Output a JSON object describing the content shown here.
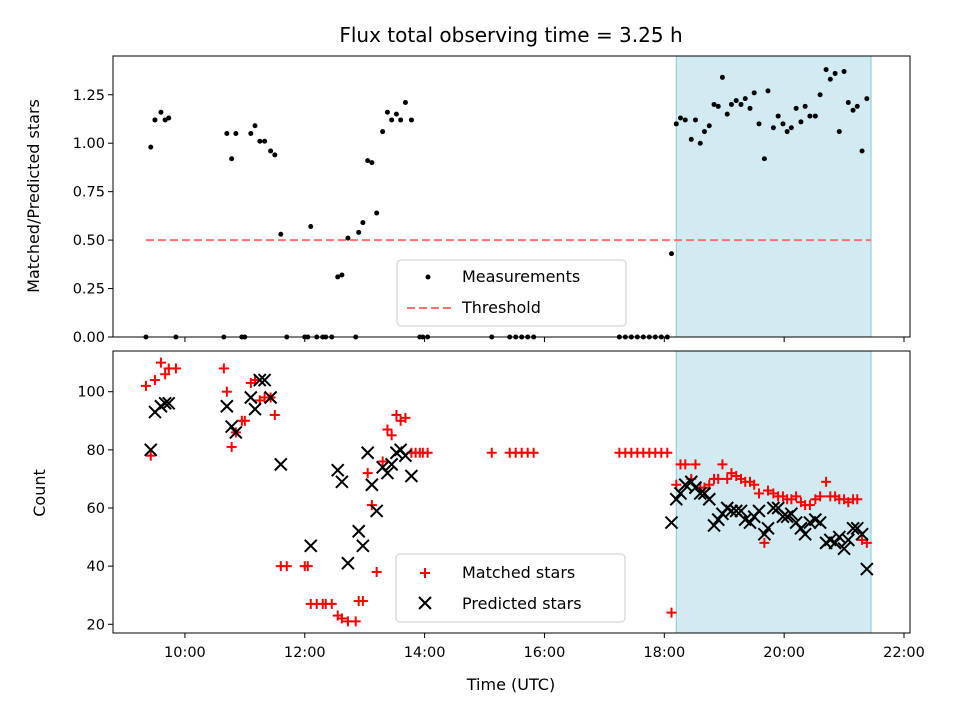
{
  "title": "Flux total observing time = 3.25 h",
  "colors": {
    "measure": "#000000",
    "threshold": "#ff7070",
    "matched": "#ff0000",
    "predicted": "#000000",
    "shade": "#add8e6"
  },
  "chart_data": [
    {
      "type": "scatter",
      "ylabel": "Matched/Predicted stars",
      "ylim": [
        0.0,
        1.45
      ],
      "yticks": [
        "0.00",
        "0.25",
        "0.50",
        "0.75",
        "1.00",
        "1.25"
      ],
      "xlim": [
        8.8,
        22.1
      ],
      "shaded_span": [
        18.2,
        21.45
      ],
      "threshold": {
        "value": 0.5,
        "x": [
          9.35,
          21.45
        ]
      },
      "legend": {
        "placement": "lower-center",
        "items": [
          "Measurements",
          "Threshold"
        ]
      },
      "measurements": [
        [
          9.35,
          0.0
        ],
        [
          9.43,
          0.98
        ],
        [
          9.5,
          1.12
        ],
        [
          9.6,
          1.16
        ],
        [
          9.67,
          1.12
        ],
        [
          9.73,
          1.13
        ],
        [
          9.85,
          0.0
        ],
        [
          10.65,
          0.0
        ],
        [
          10.7,
          1.05
        ],
        [
          10.78,
          0.92
        ],
        [
          10.85,
          1.05
        ],
        [
          10.95,
          0.0
        ],
        [
          11.0,
          0.0
        ],
        [
          11.1,
          1.05
        ],
        [
          11.17,
          1.09
        ],
        [
          11.25,
          1.01
        ],
        [
          11.33,
          1.01
        ],
        [
          11.43,
          0.96
        ],
        [
          11.5,
          0.94
        ],
        [
          11.6,
          0.53
        ],
        [
          11.7,
          0.0
        ],
        [
          12.0,
          0.0
        ],
        [
          12.05,
          0.0
        ],
        [
          12.1,
          0.57
        ],
        [
          12.2,
          0.0
        ],
        [
          12.3,
          0.0
        ],
        [
          12.35,
          0.0
        ],
        [
          12.45,
          0.0
        ],
        [
          12.55,
          0.31
        ],
        [
          12.62,
          0.32
        ],
        [
          12.72,
          0.51
        ],
        [
          12.85,
          0.0
        ],
        [
          12.9,
          0.54
        ],
        [
          12.97,
          0.59
        ],
        [
          13.05,
          0.91
        ],
        [
          13.12,
          0.9
        ],
        [
          13.2,
          0.64
        ],
        [
          13.3,
          1.06
        ],
        [
          13.38,
          1.16
        ],
        [
          13.45,
          1.12
        ],
        [
          13.53,
          1.15
        ],
        [
          13.6,
          1.12
        ],
        [
          13.68,
          1.21
        ],
        [
          13.78,
          1.12
        ],
        [
          13.92,
          0.0
        ],
        [
          13.97,
          0.0
        ],
        [
          14.05,
          0.0
        ],
        [
          15.12,
          0.0
        ],
        [
          15.42,
          0.0
        ],
        [
          15.52,
          0.0
        ],
        [
          15.62,
          0.0
        ],
        [
          15.72,
          0.0
        ],
        [
          15.82,
          0.0
        ],
        [
          17.25,
          0.0
        ],
        [
          17.35,
          0.0
        ],
        [
          17.45,
          0.0
        ],
        [
          17.55,
          0.0
        ],
        [
          17.65,
          0.0
        ],
        [
          17.75,
          0.0
        ],
        [
          17.85,
          0.0
        ],
        [
          17.95,
          0.0
        ],
        [
          18.05,
          0.0
        ],
        [
          18.12,
          0.43
        ],
        [
          18.2,
          1.1
        ],
        [
          18.27,
          1.13
        ],
        [
          18.35,
          1.12
        ],
        [
          18.45,
          1.02
        ],
        [
          18.52,
          1.12
        ],
        [
          18.6,
          1.0
        ],
        [
          18.67,
          1.06
        ],
        [
          18.75,
          1.09
        ],
        [
          18.83,
          1.2
        ],
        [
          18.9,
          1.19
        ],
        [
          18.97,
          1.34
        ],
        [
          19.05,
          1.15
        ],
        [
          19.12,
          1.2
        ],
        [
          19.2,
          1.22
        ],
        [
          19.28,
          1.2
        ],
        [
          19.35,
          1.23
        ],
        [
          19.43,
          1.18
        ],
        [
          19.5,
          1.26
        ],
        [
          19.58,
          1.1
        ],
        [
          19.67,
          0.92
        ],
        [
          19.73,
          1.27
        ],
        [
          19.82,
          1.08
        ],
        [
          19.9,
          1.14
        ],
        [
          19.98,
          1.1
        ],
        [
          20.05,
          1.06
        ],
        [
          20.12,
          1.08
        ],
        [
          20.2,
          1.18
        ],
        [
          20.28,
          1.11
        ],
        [
          20.35,
          1.19
        ],
        [
          20.43,
          1.14
        ],
        [
          20.52,
          1.14
        ],
        [
          20.6,
          1.25
        ],
        [
          20.7,
          1.38
        ],
        [
          20.77,
          1.33
        ],
        [
          20.85,
          1.36
        ],
        [
          20.92,
          1.06
        ],
        [
          21.0,
          1.37
        ],
        [
          21.07,
          1.21
        ],
        [
          21.15,
          1.17
        ],
        [
          21.22,
          1.19
        ],
        [
          21.3,
          0.96
        ],
        [
          21.38,
          1.23
        ]
      ]
    },
    {
      "type": "scatter",
      "ylabel": "Count",
      "xlabel": "Time (UTC)",
      "ylim": [
        17,
        114
      ],
      "yticks": [
        "20",
        "40",
        "60",
        "80",
        "100"
      ],
      "xlim": [
        8.8,
        22.1
      ],
      "xticks": [
        "10:00",
        "12:00",
        "14:00",
        "16:00",
        "18:00",
        "20:00",
        "22:00"
      ],
      "shaded_span": [
        18.2,
        21.45
      ],
      "legend": {
        "placement": "lower-center",
        "items": [
          "Matched stars",
          "Predicted stars"
        ]
      },
      "series": [
        {
          "name": "Matched stars",
          "marker": "+",
          "points": [
            [
              9.35,
              102
            ],
            [
              9.43,
              78
            ],
            [
              9.5,
              104
            ],
            [
              9.6,
              110
            ],
            [
              9.67,
              106
            ],
            [
              9.73,
              108
            ],
            [
              9.85,
              108
            ],
            [
              10.65,
              108
            ],
            [
              10.7,
              100
            ],
            [
              10.78,
              81
            ],
            [
              10.85,
              86
            ],
            [
              10.95,
              90
            ],
            [
              11.0,
              90
            ],
            [
              11.1,
              103
            ],
            [
              11.17,
              104
            ],
            [
              11.25,
              97
            ],
            [
              11.33,
              98
            ],
            [
              11.43,
              98
            ],
            [
              11.5,
              92
            ],
            [
              11.6,
              40
            ],
            [
              11.7,
              40
            ],
            [
              12.0,
              40
            ],
            [
              12.05,
              40
            ],
            [
              12.1,
              27
            ],
            [
              12.2,
              27
            ],
            [
              12.3,
              27
            ],
            [
              12.35,
              27
            ],
            [
              12.45,
              27
            ],
            [
              12.55,
              23
            ],
            [
              12.62,
              22
            ],
            [
              12.72,
              21
            ],
            [
              12.85,
              21
            ],
            [
              12.9,
              28
            ],
            [
              12.97,
              28
            ],
            [
              13.05,
              72
            ],
            [
              13.12,
              61
            ],
            [
              13.2,
              38
            ],
            [
              13.3,
              76
            ],
            [
              13.38,
              87
            ],
            [
              13.45,
              85
            ],
            [
              13.53,
              92
            ],
            [
              13.6,
              90
            ],
            [
              13.68,
              91
            ],
            [
              13.78,
              79
            ],
            [
              13.85,
              79
            ],
            [
              13.92,
              79
            ],
            [
              13.97,
              79
            ],
            [
              14.05,
              79
            ],
            [
              15.12,
              79
            ],
            [
              15.42,
              79
            ],
            [
              15.52,
              79
            ],
            [
              15.62,
              79
            ],
            [
              15.72,
              79
            ],
            [
              15.82,
              79
            ],
            [
              17.25,
              79
            ],
            [
              17.35,
              79
            ],
            [
              17.45,
              79
            ],
            [
              17.55,
              79
            ],
            [
              17.65,
              79
            ],
            [
              17.75,
              79
            ],
            [
              17.85,
              79
            ],
            [
              17.95,
              79
            ],
            [
              18.05,
              79
            ],
            [
              18.12,
              24
            ],
            [
              18.2,
              68
            ],
            [
              18.27,
              75
            ],
            [
              18.35,
              75
            ],
            [
              18.45,
              70
            ],
            [
              18.52,
              75
            ],
            [
              18.6,
              67
            ],
            [
              18.67,
              67
            ],
            [
              18.75,
              68
            ],
            [
              18.83,
              70
            ],
            [
              18.9,
              70
            ],
            [
              18.97,
              75
            ],
            [
              19.05,
              70
            ],
            [
              19.12,
              72
            ],
            [
              19.2,
              71
            ],
            [
              19.28,
              70
            ],
            [
              19.35,
              69
            ],
            [
              19.43,
              69
            ],
            [
              19.5,
              68
            ],
            [
              19.58,
              65
            ],
            [
              19.67,
              48
            ],
            [
              19.73,
              66
            ],
            [
              19.82,
              65
            ],
            [
              19.9,
              64
            ],
            [
              19.98,
              64
            ],
            [
              20.05,
              63
            ],
            [
              20.12,
              63
            ],
            [
              20.2,
              64
            ],
            [
              20.28,
              62
            ],
            [
              20.35,
              61
            ],
            [
              20.43,
              61
            ],
            [
              20.52,
              63
            ],
            [
              20.6,
              64
            ],
            [
              20.7,
              69
            ],
            [
              20.77,
              64
            ],
            [
              20.85,
              64
            ],
            [
              20.92,
              63
            ],
            [
              21.0,
              63
            ],
            [
              21.07,
              62
            ],
            [
              21.15,
              63
            ],
            [
              21.22,
              63
            ],
            [
              21.3,
              49
            ],
            [
              21.38,
              48
            ]
          ]
        },
        {
          "name": "Predicted stars",
          "marker": "x",
          "points": [
            [
              9.43,
              80
            ],
            [
              9.5,
              93
            ],
            [
              9.6,
              95
            ],
            [
              9.67,
              96
            ],
            [
              9.73,
              96
            ],
            [
              10.7,
              95
            ],
            [
              10.78,
              88
            ],
            [
              10.85,
              86
            ],
            [
              11.1,
              98
            ],
            [
              11.17,
              94
            ],
            [
              11.25,
              104
            ],
            [
              11.33,
              104
            ],
            [
              11.43,
              98
            ],
            [
              11.6,
              75
            ],
            [
              12.1,
              47
            ],
            [
              12.55,
              73
            ],
            [
              12.62,
              69
            ],
            [
              12.72,
              41
            ],
            [
              12.9,
              52
            ],
            [
              12.97,
              47
            ],
            [
              13.05,
              79
            ],
            [
              13.12,
              68
            ],
            [
              13.2,
              59
            ],
            [
              13.3,
              74
            ],
            [
              13.38,
              72
            ],
            [
              13.45,
              75
            ],
            [
              13.53,
              79
            ],
            [
              13.6,
              80
            ],
            [
              13.68,
              78
            ],
            [
              13.78,
              71
            ],
            [
              18.12,
              55
            ],
            [
              18.2,
              63
            ],
            [
              18.27,
              65
            ],
            [
              18.35,
              68
            ],
            [
              18.45,
              69
            ],
            [
              18.52,
              67
            ],
            [
              18.6,
              65
            ],
            [
              18.67,
              65
            ],
            [
              18.75,
              63
            ],
            [
              18.83,
              54
            ],
            [
              18.9,
              56
            ],
            [
              18.97,
              58
            ],
            [
              19.05,
              60
            ],
            [
              19.12,
              59
            ],
            [
              19.2,
              59
            ],
            [
              19.28,
              59
            ],
            [
              19.35,
              56
            ],
            [
              19.43,
              55
            ],
            [
              19.5,
              57
            ],
            [
              19.58,
              59
            ],
            [
              19.67,
              51
            ],
            [
              19.73,
              53
            ],
            [
              19.82,
              60
            ],
            [
              19.9,
              60
            ],
            [
              19.98,
              57
            ],
            [
              20.05,
              57
            ],
            [
              20.12,
              58
            ],
            [
              20.2,
              55
            ],
            [
              20.28,
              53
            ],
            [
              20.35,
              51
            ],
            [
              20.43,
              55
            ],
            [
              20.52,
              56
            ],
            [
              20.6,
              55
            ],
            [
              20.7,
              48
            ],
            [
              20.77,
              49
            ],
            [
              20.85,
              48
            ],
            [
              20.92,
              50
            ],
            [
              21.0,
              46
            ],
            [
              21.07,
              49
            ],
            [
              21.15,
              53
            ],
            [
              21.22,
              53
            ],
            [
              21.3,
              51
            ],
            [
              21.38,
              39
            ]
          ]
        }
      ]
    }
  ]
}
